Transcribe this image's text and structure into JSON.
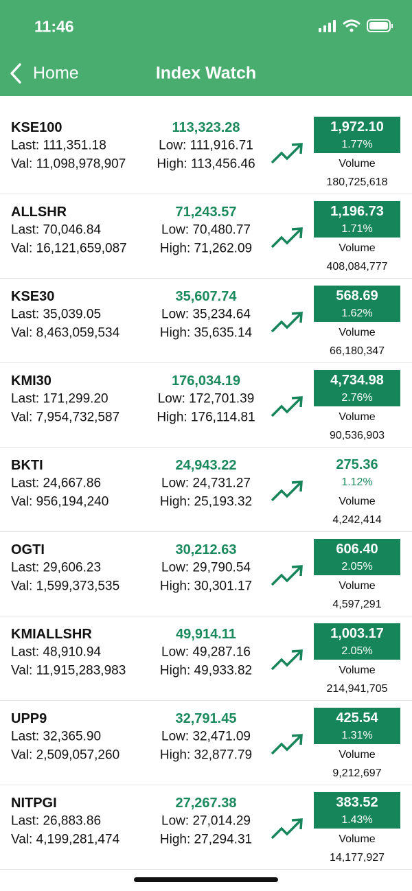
{
  "status_bar": {
    "time": "11:46"
  },
  "nav": {
    "back": "Home",
    "title": "Index Watch"
  },
  "labels": {
    "last": "Last:",
    "val": "Val:",
    "low": "Low:",
    "high": "High:",
    "volume": "Volume"
  },
  "rows": [
    {
      "name": "KSE100",
      "last": "111,351.18",
      "val": "11,098,978,907",
      "current": "113,323.28",
      "low": "111,916.71",
      "high": "113,456.46",
      "change": "1,972.10",
      "percent": "1.77%",
      "volume": "180,725,618",
      "highlighted": true
    },
    {
      "name": "ALLSHR",
      "last": "70,046.84",
      "val": "16,121,659,087",
      "current": "71,243.57",
      "low": "70,480.77",
      "high": "71,262.09",
      "change": "1,196.73",
      "percent": "1.71%",
      "volume": "408,084,777",
      "highlighted": true
    },
    {
      "name": "KSE30",
      "last": "35,039.05",
      "val": "8,463,059,534",
      "current": "35,607.74",
      "low": "35,234.64",
      "high": "35,635.14",
      "change": "568.69",
      "percent": "1.62%",
      "volume": "66,180,347",
      "highlighted": true
    },
    {
      "name": "KMI30",
      "last": "171,299.20",
      "val": "7,954,732,587",
      "current": "176,034.19",
      "low": "172,701.39",
      "high": "176,114.81",
      "change": "4,734.98",
      "percent": "2.76%",
      "volume": "90,536,903",
      "highlighted": true
    },
    {
      "name": "BKTI",
      "last": "24,667.86",
      "val": "956,194,240",
      "current": "24,943.22",
      "low": "24,731.27",
      "high": "25,193.32",
      "change": "275.36",
      "percent": "1.12%",
      "volume": "4,242,414",
      "highlighted": false
    },
    {
      "name": "OGTI",
      "last": "29,606.23",
      "val": "1,599,373,535",
      "current": "30,212.63",
      "low": "29,790.54",
      "high": "30,301.17",
      "change": "606.40",
      "percent": "2.05%",
      "volume": "4,597,291",
      "highlighted": true
    },
    {
      "name": "KMIALLSHR",
      "last": "48,910.94",
      "val": "11,915,283,983",
      "current": "49,914.11",
      "low": "49,287.16",
      "high": "49,933.82",
      "change": "1,003.17",
      "percent": "2.05%",
      "volume": "214,941,705",
      "highlighted": true
    },
    {
      "name": "UPP9",
      "last": "32,365.90",
      "val": "2,509,057,260",
      "current": "32,791.45",
      "low": "32,471.09",
      "high": "32,877.79",
      "change": "425.54",
      "percent": "1.31%",
      "volume": "9,212,697",
      "highlighted": true
    },
    {
      "name": "NITPGI",
      "last": "26,883.86",
      "val": "4,199,281,474",
      "current": "27,267.38",
      "low": "27,014.29",
      "high": "27,294.31",
      "change": "383.52",
      "percent": "1.43%",
      "volume": "14,177,927",
      "highlighted": true
    }
  ]
}
